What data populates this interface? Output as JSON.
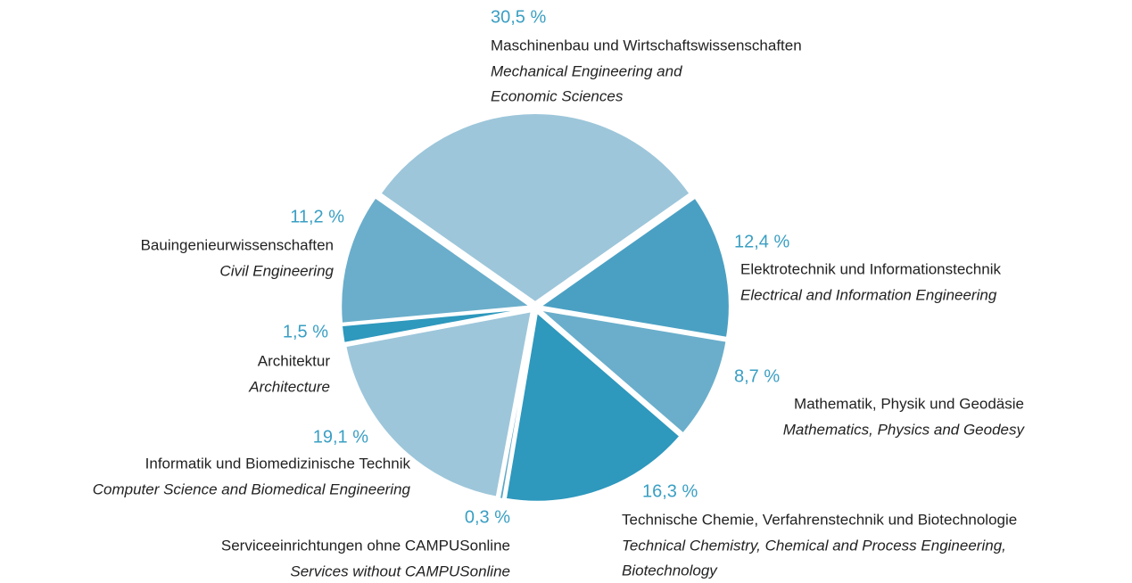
{
  "chart_data": {
    "type": "pie",
    "categories": [
      "Maschinenbau und Wirtschaftswissenschaften",
      "Elektrotechnik und Informationstechnik",
      "Mathematik, Physik und Geodäsie",
      "Technische Chemie, Verfahrenstechnik und Biotechnologie",
      "Serviceeinrichtungen ohne CAMPUSonline",
      "Informatik und Biomedizinische Technik",
      "Architektur",
      "Bauingenieurwissenschaften"
    ],
    "subtitles": [
      [
        "Mechanical Engineering and",
        "Economic Sciences"
      ],
      [
        "Electrical and Information Engineering"
      ],
      [
        "Mathematics, Physics and Geodesy"
      ],
      [
        "Technical Chemistry, Chemical and Process Engineering,",
        "Biotechnology"
      ],
      [
        "Services without CAMPUSonline"
      ],
      [
        "Computer Science and Biomedical Engineering"
      ],
      [
        "Architecture"
      ],
      [
        "Civil Engineering"
      ]
    ],
    "values": [
      30.5,
      12.4,
      8.7,
      16.3,
      0.3,
      19.1,
      1.5,
      11.2
    ],
    "value_labels": [
      "30,5 %",
      "12,4 %",
      "8,7 %",
      "16,3 %",
      "0,3 %",
      "19,1 %",
      "1,5 %",
      "11,2 %"
    ],
    "colors": [
      "#9dc6da",
      "#4aa0c3",
      "#6aaecb",
      "#2e98bd",
      "#5aa8c8",
      "#9dc6da",
      "#2e98bd",
      "#6aaecb"
    ]
  }
}
